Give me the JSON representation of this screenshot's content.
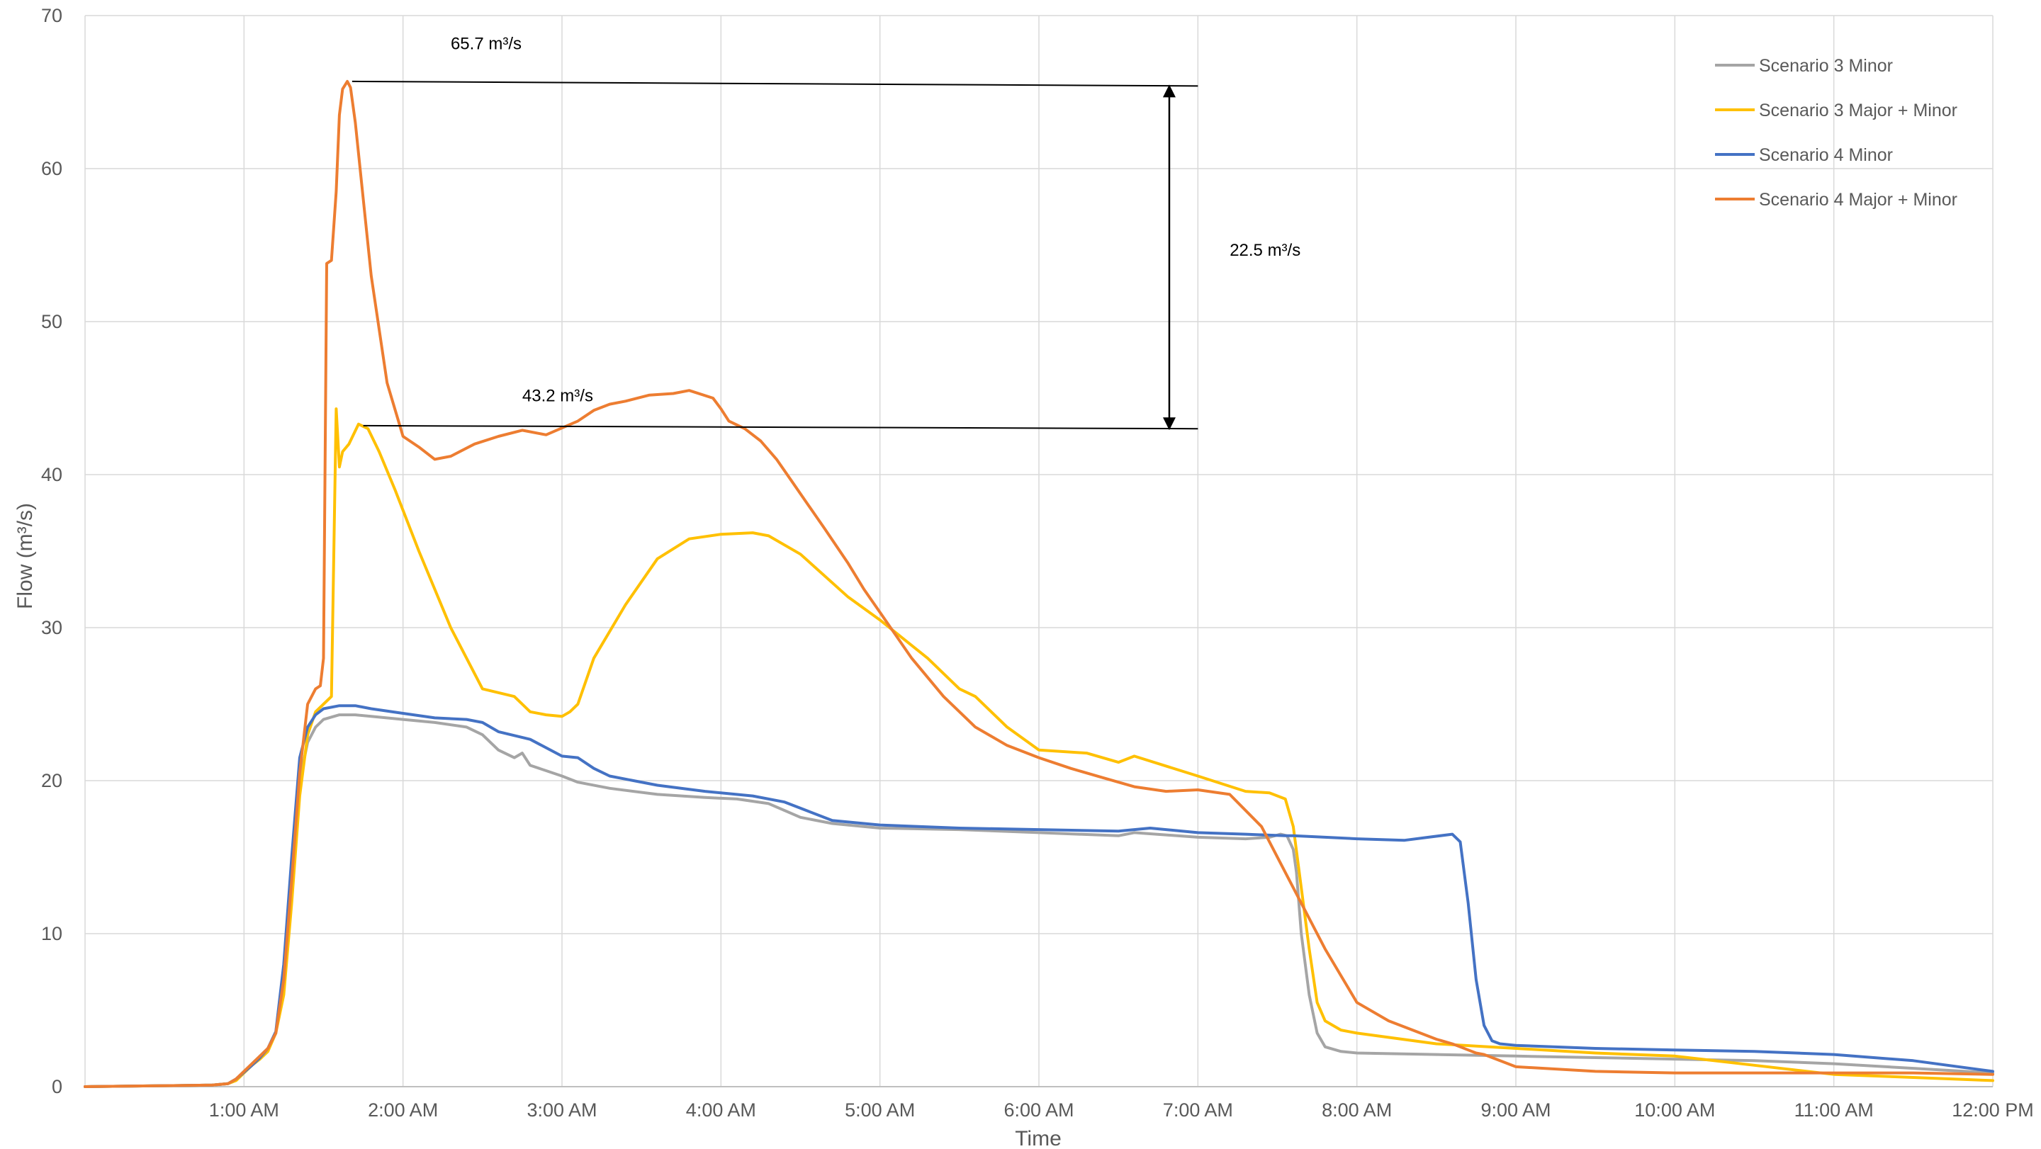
{
  "chart_data": {
    "type": "line",
    "xlabel": "Time",
    "ylabel": "Flow (m³/s)",
    "x_unit": "hours after midnight",
    "xlim": [
      0,
      12
    ],
    "ylim": [
      0,
      70
    ],
    "y_ticks": [
      0,
      10,
      20,
      30,
      40,
      50,
      60,
      70
    ],
    "x_ticks": [
      {
        "x": 1,
        "label": "1:00 AM"
      },
      {
        "x": 2,
        "label": "2:00 AM"
      },
      {
        "x": 3,
        "label": "3:00 AM"
      },
      {
        "x": 4,
        "label": "4:00 AM"
      },
      {
        "x": 5,
        "label": "5:00 AM"
      },
      {
        "x": 6,
        "label": "6:00 AM"
      },
      {
        "x": 7,
        "label": "7:00 AM"
      },
      {
        "x": 8,
        "label": "8:00 AM"
      },
      {
        "x": 9,
        "label": "9:00 AM"
      },
      {
        "x": 10,
        "label": "10:00 AM"
      },
      {
        "x": 11,
        "label": "11:00 AM"
      },
      {
        "x": 12,
        "label": "12:00 PM"
      }
    ],
    "grid": true,
    "legend_position": "top-right",
    "series": [
      {
        "name": "Scenario 3 Minor",
        "color": "#A5A5A5",
        "x": [
          0,
          0.8,
          0.9,
          0.95,
          1.05,
          1.1,
          1.15,
          1.2,
          1.25,
          1.3,
          1.35,
          1.4,
          1.45,
          1.5,
          1.6,
          1.7,
          1.8,
          2.0,
          2.2,
          2.4,
          2.5,
          2.6,
          2.7,
          2.75,
          2.8,
          3.0,
          3.1,
          3.3,
          3.6,
          3.9,
          4.1,
          4.3,
          4.5,
          4.7,
          5.0,
          5.5,
          6.0,
          6.5,
          6.6,
          7.0,
          7.3,
          7.45,
          7.52,
          7.56,
          7.6,
          7.62,
          7.65,
          7.7,
          7.75,
          7.8,
          7.9,
          8.0,
          8.5,
          9.0,
          9.5,
          10.0,
          10.5,
          11.0,
          11.5,
          12.0
        ],
        "y": [
          0,
          0.1,
          0.2,
          0.5,
          1.5,
          2.0,
          2.5,
          3.5,
          7.0,
          14.0,
          20.0,
          22.5,
          23.5,
          24.0,
          24.3,
          24.3,
          24.2,
          24.0,
          23.8,
          23.5,
          23.0,
          22.0,
          21.5,
          21.8,
          21.0,
          20.3,
          19.9,
          19.5,
          19.1,
          18.9,
          18.8,
          18.5,
          17.6,
          17.2,
          16.9,
          16.8,
          16.6,
          16.4,
          16.6,
          16.3,
          16.2,
          16.3,
          16.5,
          16.4,
          15.5,
          14.0,
          10.0,
          6.0,
          3.5,
          2.6,
          2.3,
          2.2,
          2.1,
          2.0,
          1.9,
          1.8,
          1.7,
          1.5,
          1.2,
          0.9
        ]
      },
      {
        "name": "Scenario 3 Major + Minor",
        "color": "#FFC000",
        "x": [
          0,
          0.8,
          0.9,
          0.95,
          1.05,
          1.1,
          1.15,
          1.2,
          1.25,
          1.3,
          1.35,
          1.4,
          1.45,
          1.5,
          1.55,
          1.58,
          1.6,
          1.62,
          1.66,
          1.72,
          1.78,
          1.85,
          1.95,
          2.1,
          2.3,
          2.5,
          2.7,
          2.8,
          2.9,
          3.0,
          3.05,
          3.1,
          3.2,
          3.4,
          3.6,
          3.8,
          4.0,
          4.2,
          4.3,
          4.5,
          4.8,
          5.0,
          5.3,
          5.5,
          5.6,
          5.8,
          6.0,
          6.3,
          6.5,
          6.6,
          7.0,
          7.3,
          7.45,
          7.55,
          7.6,
          7.65,
          7.7,
          7.75,
          7.8,
          7.9,
          8.0,
          8.5,
          9.0,
          9.5,
          10.0,
          10.5,
          11.0,
          11.5,
          12.0
        ],
        "y": [
          0,
          0.1,
          0.2,
          0.4,
          1.4,
          1.8,
          2.3,
          3.5,
          6.0,
          12.0,
          19.0,
          23.0,
          24.5,
          25.0,
          25.5,
          44.3,
          40.5,
          41.5,
          42.0,
          43.3,
          43.0,
          41.5,
          39.0,
          35.0,
          30.0,
          26.0,
          25.5,
          24.5,
          24.3,
          24.2,
          24.5,
          25.0,
          28.0,
          31.5,
          34.5,
          35.8,
          36.1,
          36.2,
          36.0,
          34.8,
          32.0,
          30.5,
          28.0,
          26.0,
          25.5,
          23.5,
          22.0,
          21.8,
          21.2,
          21.6,
          20.3,
          19.3,
          19.2,
          18.8,
          17.0,
          13.0,
          9.0,
          5.5,
          4.3,
          3.7,
          3.5,
          2.8,
          2.5,
          2.2,
          2.0,
          1.4,
          0.8,
          0.6,
          0.4
        ]
      },
      {
        "name": "Scenario 4 Minor",
        "color": "#4472C4",
        "x": [
          0,
          0.8,
          0.9,
          0.95,
          1.05,
          1.1,
          1.15,
          1.2,
          1.25,
          1.3,
          1.35,
          1.4,
          1.45,
          1.5,
          1.6,
          1.7,
          1.8,
          2.0,
          2.2,
          2.4,
          2.5,
          2.6,
          2.8,
          3.0,
          3.1,
          3.2,
          3.3,
          3.6,
          3.9,
          4.2,
          4.4,
          4.5,
          4.7,
          5.0,
          5.5,
          6.0,
          6.5,
          6.7,
          7.0,
          7.3,
          7.55,
          7.6,
          7.8,
          8.0,
          8.3,
          8.45,
          8.6,
          8.65,
          8.7,
          8.75,
          8.8,
          8.85,
          8.9,
          9.0,
          9.5,
          10.0,
          10.5,
          11.0,
          11.5,
          12.0
        ],
        "y": [
          0,
          0.1,
          0.2,
          0.5,
          1.4,
          1.9,
          2.5,
          3.6,
          8.0,
          15.0,
          21.5,
          23.5,
          24.3,
          24.7,
          24.9,
          24.9,
          24.7,
          24.4,
          24.1,
          24.0,
          23.8,
          23.2,
          22.7,
          21.6,
          21.5,
          20.8,
          20.3,
          19.7,
          19.3,
          19.0,
          18.6,
          18.2,
          17.4,
          17.1,
          16.9,
          16.8,
          16.7,
          16.9,
          16.6,
          16.5,
          16.4,
          16.4,
          16.3,
          16.2,
          16.1,
          16.3,
          16.5,
          16.0,
          12.0,
          7.0,
          4.0,
          3.0,
          2.8,
          2.7,
          2.5,
          2.4,
          2.3,
          2.1,
          1.7,
          1.0
        ]
      },
      {
        "name": "Scenario 4 Major + Minor",
        "color": "#ED7D31",
        "x": [
          0,
          0.8,
          0.9,
          0.95,
          1.05,
          1.1,
          1.15,
          1.2,
          1.25,
          1.3,
          1.35,
          1.4,
          1.45,
          1.48,
          1.5,
          1.52,
          1.55,
          1.58,
          1.6,
          1.62,
          1.65,
          1.67,
          1.7,
          1.75,
          1.8,
          1.9,
          2.0,
          2.1,
          2.2,
          2.3,
          2.45,
          2.6,
          2.75,
          2.9,
          3.1,
          3.2,
          3.3,
          3.4,
          3.55,
          3.7,
          3.8,
          3.95,
          4.0,
          4.05,
          4.15,
          4.25,
          4.35,
          4.45,
          4.55,
          4.65,
          4.8,
          4.9,
          5.0,
          5.1,
          5.2,
          5.4,
          5.6,
          5.8,
          6.0,
          6.2,
          6.4,
          6.6,
          6.8,
          7.0,
          7.2,
          7.4,
          7.6,
          7.8,
          8.0,
          8.2,
          8.4,
          8.5,
          8.6,
          8.65,
          8.7,
          8.75,
          8.8,
          8.9,
          9.0,
          9.5,
          10.0,
          10.5,
          11.0,
          11.5,
          12.0
        ],
        "y": [
          0,
          0.1,
          0.2,
          0.5,
          1.5,
          2.0,
          2.5,
          3.5,
          7.0,
          13.5,
          20.5,
          25.0,
          26.0,
          26.2,
          28.0,
          53.8,
          54.0,
          58.5,
          63.5,
          65.2,
          65.7,
          65.3,
          63.0,
          58.0,
          53.0,
          46.0,
          42.5,
          41.8,
          41.0,
          41.2,
          42.0,
          42.5,
          42.9,
          42.6,
          43.5,
          44.2,
          44.6,
          44.8,
          45.2,
          45.3,
          45.5,
          45.0,
          44.3,
          43.5,
          43.0,
          42.2,
          41.0,
          39.5,
          38.0,
          36.5,
          34.2,
          32.5,
          31.0,
          29.5,
          28.0,
          25.5,
          23.5,
          22.3,
          21.5,
          20.8,
          20.2,
          19.6,
          19.3,
          19.4,
          19.1,
          17.0,
          13.0,
          9.0,
          5.5,
          4.3,
          3.5,
          3.1,
          2.8,
          2.6,
          2.4,
          2.2,
          2.1,
          1.7,
          1.3,
          1.0,
          0.9,
          0.9,
          0.9,
          0.9,
          0.8
        ]
      }
    ],
    "annotations": [
      {
        "type": "line",
        "x1": 1.68,
        "y1": 65.7,
        "x2": 7.0,
        "y2": 65.4
      },
      {
        "type": "line",
        "x1": 1.75,
        "y1": 43.2,
        "x2": 7.0,
        "y2": 43.0
      },
      {
        "type": "double-arrow",
        "x": 6.82,
        "y1": 65.4,
        "y2": 43.0
      },
      {
        "type": "text",
        "text": "65.7 m³/s",
        "x": 2.3,
        "y": 67.8
      },
      {
        "type": "text",
        "text": "43.2 m³/s",
        "x": 2.75,
        "y": 44.8
      },
      {
        "type": "text",
        "text": "22.5 m³/s",
        "x": 7.2,
        "y": 54.3
      }
    ]
  }
}
